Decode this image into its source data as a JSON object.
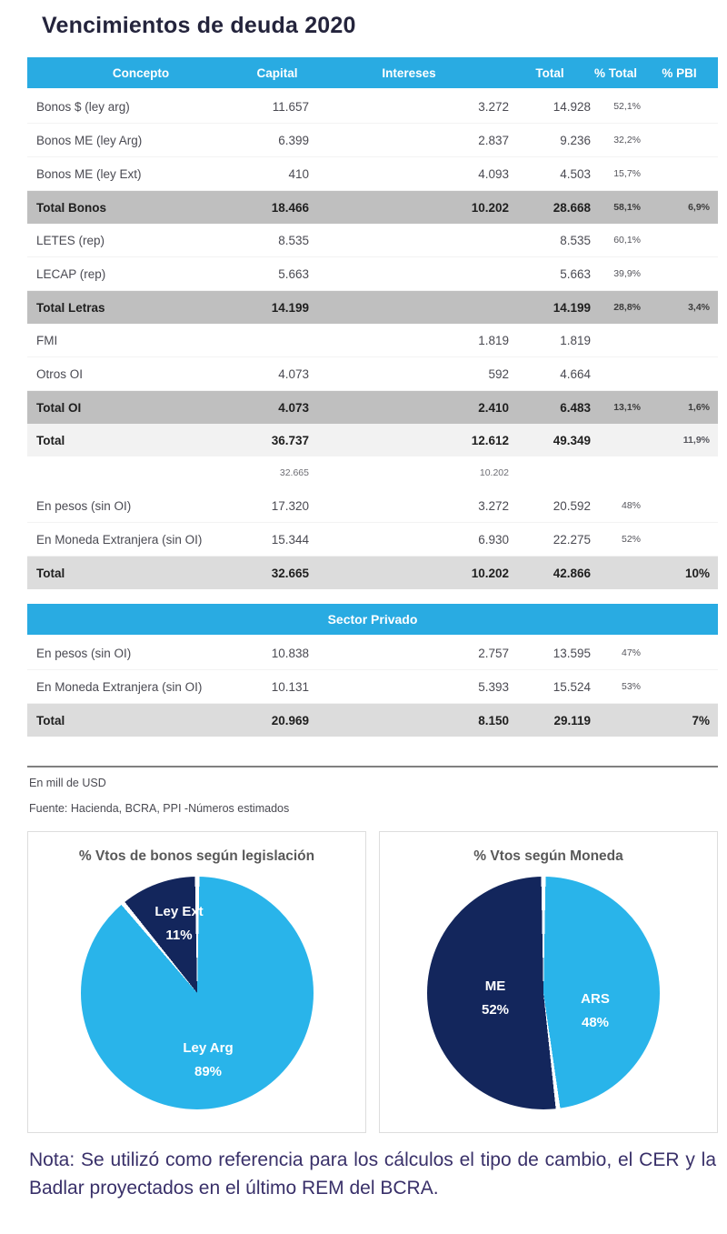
{
  "page": {
    "title": "Vencimientos de deuda 2020"
  },
  "table": {
    "columns": [
      "Concepto",
      "Capital",
      "Intereses",
      "Total",
      "% Total",
      "% PBI"
    ],
    "rows": [
      {
        "label": "Bonos $ (ley arg)",
        "capital": "11.657",
        "intereses": "3.272",
        "total": "14.928",
        "pct_total": "52,1%",
        "pct_pbi": "",
        "style": "normal"
      },
      {
        "label": "Bonos ME (ley Arg)",
        "capital": "6.399",
        "intereses": "2.837",
        "total": "9.236",
        "pct_total": "32,2%",
        "pct_pbi": "",
        "style": "normal"
      },
      {
        "label": "Bonos ME (ley Ext)",
        "capital": "410",
        "intereses": "4.093",
        "total": "4.503",
        "pct_total": "15,7%",
        "pct_pbi": "",
        "style": "normal"
      },
      {
        "label": "Total Bonos",
        "capital": "18.466",
        "intereses": "10.202",
        "total": "28.668",
        "pct_total": "58,1%",
        "pct_pbi": "6,9%",
        "style": "subtotal"
      },
      {
        "label": "LETES (rep)",
        "capital": "8.535",
        "intereses": "",
        "total": "8.535",
        "pct_total": "60,1%",
        "pct_pbi": "",
        "style": "normal"
      },
      {
        "label": "LECAP (rep)",
        "capital": "5.663",
        "intereses": "",
        "total": "5.663",
        "pct_total": "39,9%",
        "pct_pbi": "",
        "style": "normal"
      },
      {
        "label": "Total Letras",
        "capital": "14.199",
        "intereses": "",
        "total": "14.199",
        "pct_total": "28,8%",
        "pct_pbi": "3,4%",
        "style": "subtotal"
      },
      {
        "label": "FMI",
        "capital": "",
        "intereses": "1.819",
        "total": "1.819",
        "pct_total": "",
        "pct_pbi": "",
        "style": "normal"
      },
      {
        "label": "Otros OI",
        "capital": "4.073",
        "intereses": "592",
        "total": "4.664",
        "pct_total": "",
        "pct_pbi": "",
        "style": "normal"
      },
      {
        "label": "Total OI",
        "capital": "4.073",
        "intereses": "2.410",
        "total": "6.483",
        "pct_total": "13,1%",
        "pct_pbi": "1,6%",
        "style": "subtotal"
      },
      {
        "label": "Total",
        "capital": "36.737",
        "intereses": "12.612",
        "total": "49.349",
        "pct_total": "",
        "pct_pbi": "11,9%",
        "style": "total-light"
      },
      {
        "label": "",
        "capital": "32.665",
        "intereses": "10.202",
        "total": "",
        "pct_total": "",
        "pct_pbi": "",
        "style": "small"
      },
      {
        "label": "En pesos (sin OI)",
        "capital": "17.320",
        "intereses": "3.272",
        "total": "20.592",
        "pct_total": "48%",
        "pct_pbi": "",
        "style": "normal"
      },
      {
        "label": "En Moneda Extranjera (sin OI)",
        "capital": "15.344",
        "intereses": "6.930",
        "total": "22.275",
        "pct_total": "52%",
        "pct_pbi": "",
        "style": "normal"
      },
      {
        "label": "Total",
        "capital": "32.665",
        "intereses": "10.202",
        "total": "42.866",
        "pct_total": "",
        "pct_pbi": "10%",
        "style": "total-gray"
      }
    ]
  },
  "sector_privado": {
    "header": "Sector Privado",
    "rows": [
      {
        "label": "En pesos (sin OI)",
        "capital": "10.838",
        "intereses": "2.757",
        "total": "13.595",
        "pct_total": "47%",
        "pct_pbi": "",
        "style": "normal"
      },
      {
        "label": "En Moneda Extranjera (sin OI)",
        "capital": "10.131",
        "intereses": "5.393",
        "total": "15.524",
        "pct_total": "53%",
        "pct_pbi": "",
        "style": "normal"
      },
      {
        "label": "Total",
        "capital": "20.969",
        "intereses": "8.150",
        "total": "29.119",
        "pct_total": "",
        "pct_pbi": "7%",
        "style": "total-gray"
      }
    ]
  },
  "footnotes": {
    "unit": "En mill de USD",
    "source": "Fuente: Hacienda, BCRA, PPI -Números estimados"
  },
  "note": "Nota: Se utilizó como referencia para los cálculos el tipo de cambio, el CER y la Badlar proyectados en el último REM del BCRA.",
  "colors": {
    "accent_cyan": "#29abe2",
    "pie_light": "#29b4ea",
    "pie_dark": "#13265c",
    "subtotal_gray": "#bfbfbf",
    "total_light_gray": "#f2f2f2",
    "total_gray": "#dcdcdc"
  },
  "chart_data": [
    {
      "type": "pie",
      "title": "% Vtos de bonos según legislación",
      "labels": [
        "Ley Arg",
        "Ley Ext"
      ],
      "values": [
        89,
        11
      ],
      "value_labels": [
        "89%",
        "11%"
      ],
      "colors": [
        "#29b4ea",
        "#13265c"
      ],
      "start_angle": "top, clockwise",
      "legend": "labels inside slices"
    },
    {
      "type": "pie",
      "title": "% Vtos según Moneda",
      "labels": [
        "ARS",
        "ME"
      ],
      "values": [
        48,
        52
      ],
      "value_labels": [
        "48%",
        "52%"
      ],
      "colors": [
        "#29b4ea",
        "#13265c"
      ],
      "start_angle": "top, clockwise",
      "legend": "labels inside slices"
    }
  ]
}
